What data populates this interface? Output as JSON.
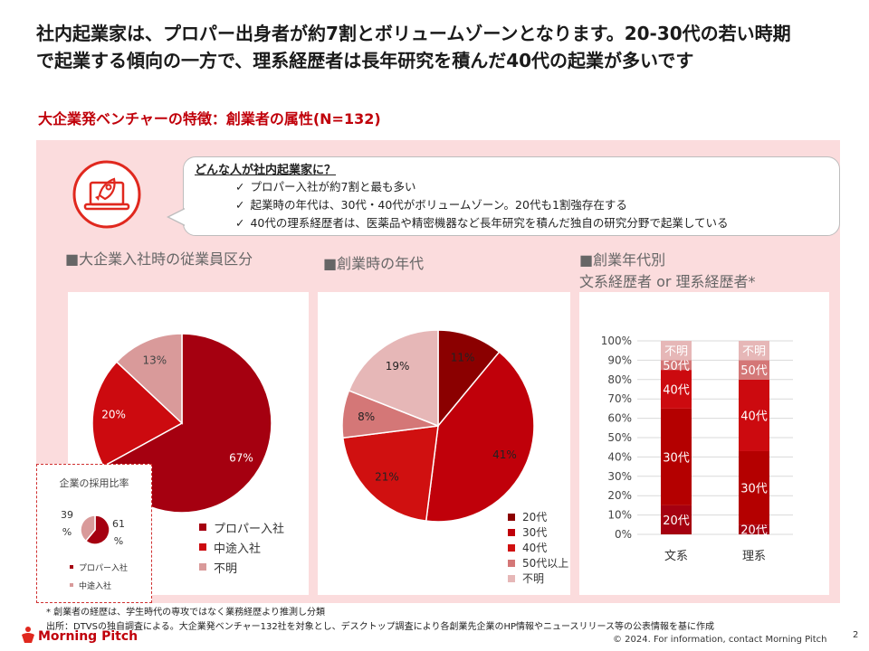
{
  "headline": {
    "line1": "社内起業家は、プロパー出身者が約7割とボリュームゾーンとなります。20-30代の若い時期",
    "line2": "で起業する傾向の一方で、理系経歴者は長年研究を積んだ40代の起業が多いです"
  },
  "subtitle": "大企業発ベンチャーの特徴：創業者の属性(N=132)",
  "callout": {
    "title": "どんな人が社内起業家に？",
    "check_icon": "✓",
    "items": [
      "プロパー入社が約7割と最も多い",
      "起業時の年代は、30代・40代がボリュームゾーン。20代も1割強存在する",
      "40代の理系経歴者は、医薬品や精密機器など長年研究を積んだ独自の研究分野で起業している"
    ]
  },
  "sections": {
    "employee": "■大企業入社時の従業員区分",
    "age": "■創業時の年代",
    "bg_line1": "■創業年代別",
    "bg_line2": "文系経歴者 or 理系経歴者*"
  },
  "inset": {
    "title": "企業の採用比率",
    "label_left_a": "39",
    "label_left_b": "%",
    "label_right_a": "61",
    "label_right_b": "%",
    "legend": [
      "プロパー入社",
      "中途入社"
    ]
  },
  "footnotes": {
    "note1": "* 創業者の経歴は、学生時代の専攻ではなく業務経歴より推測し分類",
    "note2": "出所：DTVSの独自調査による。大企業発ベンチャー132社を対象とし、デスクトップ調査により各創業先企業のHP情報やニュースリリース等の公表情報を基に作成"
  },
  "logo": "Morning Pitch",
  "copyright": "© 2024. For information, contact Morning Pitch",
  "page_number": "2",
  "colors": {
    "accent": "#c0000a",
    "panel": "#fbdcdd"
  },
  "chart_data": [
    {
      "type": "pie",
      "categories": [
        "プロパー入社",
        "中途入社",
        "不明"
      ],
      "values": [
        67,
        20,
        13
      ],
      "labels": [
        "67%",
        "20%",
        "13%"
      ],
      "colors": [
        "#a50010",
        "#cc0a0f",
        "#d99a9a"
      ],
      "legend_position": "bottom-right"
    },
    {
      "type": "pie",
      "categories": [
        "20代",
        "30代",
        "40代",
        "50代以上",
        "不明"
      ],
      "values": [
        11,
        41,
        21,
        8,
        19
      ],
      "labels": [
        "11%",
        "41%",
        "21%",
        "8%",
        "19%"
      ],
      "colors": [
        "#8b0000",
        "#c0000a",
        "#d01010",
        "#d47777",
        "#e6b7b7"
      ],
      "legend_position": "bottom-right"
    },
    {
      "type": "bar",
      "stacked": true,
      "categories": [
        "文系",
        "理系"
      ],
      "series": [
        {
          "name": "20代",
          "values": [
            15,
            5
          ],
          "color": "#a50010"
        },
        {
          "name": "30代",
          "values": [
            50,
            38
          ],
          "color": "#b40000"
        },
        {
          "name": "40代",
          "values": [
            20,
            37
          ],
          "color": "#cc0a0f"
        },
        {
          "name": "50代",
          "values": [
            5,
            10
          ],
          "color": "#d47777"
        },
        {
          "name": "不明",
          "values": [
            10,
            10
          ],
          "color": "#e6b7b7"
        }
      ],
      "yticks": [
        "0%",
        "10%",
        "20%",
        "30%",
        "40%",
        "50%",
        "60%",
        "70%",
        "80%",
        "90%",
        "100%"
      ],
      "ylim": [
        0,
        100
      ]
    },
    {
      "type": "pie",
      "categories": [
        "プロパー入社",
        "中途入社"
      ],
      "values": [
        61,
        39
      ],
      "colors": [
        "#a50010",
        "#d99a9a"
      ]
    }
  ]
}
